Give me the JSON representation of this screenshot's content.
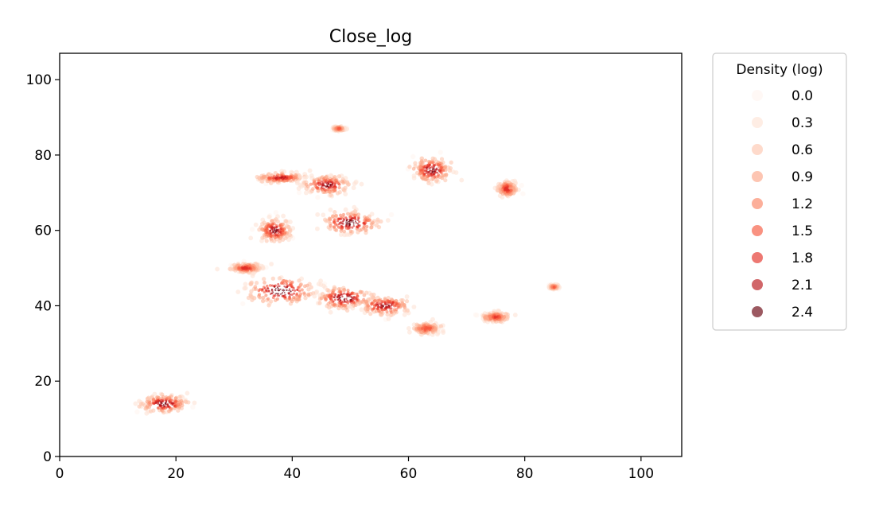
{
  "chart_data": {
    "type": "scatter",
    "title": "Close_log",
    "xlabel": "",
    "ylabel": "",
    "xlim": [
      0,
      107
    ],
    "ylim": [
      0,
      107
    ],
    "xticks": [
      0,
      20,
      40,
      60,
      80,
      100
    ],
    "yticks": [
      0,
      20,
      40,
      60,
      80,
      100
    ],
    "grid": false,
    "colormap": "Reds",
    "legend": {
      "title": "Density (log)",
      "placement": "outside-right",
      "entries": [
        {
          "label": "0.0",
          "color": "#fff5f0"
        },
        {
          "label": "0.3",
          "color": "#fee3d6"
        },
        {
          "label": "0.6",
          "color": "#fdc6af"
        },
        {
          "label": "0.9",
          "color": "#fca689"
        },
        {
          "label": "1.2",
          "color": "#fb8464"
        },
        {
          "label": "1.5",
          "color": "#f6583e"
        },
        {
          "label": "1.8",
          "color": "#e32f27"
        },
        {
          "label": "2.1",
          "color": "#b91419"
        },
        {
          "label": "2.4",
          "color": "#67000d"
        }
      ]
    },
    "clusters": [
      {
        "x": 18,
        "y": 14,
        "spread_x": 1.6,
        "spread_y": 0.9,
        "density": 2.2
      },
      {
        "x": 32,
        "y": 50,
        "spread_x": 1.0,
        "spread_y": 0.5,
        "density": 1.6
      },
      {
        "x": 37,
        "y": 60,
        "spread_x": 1.1,
        "spread_y": 1.2,
        "density": 2.1
      },
      {
        "x": 38,
        "y": 74,
        "spread_x": 1.6,
        "spread_y": 0.5,
        "density": 1.8
      },
      {
        "x": 38,
        "y": 44,
        "spread_x": 2.3,
        "spread_y": 1.4,
        "density": 2.4
      },
      {
        "x": 46,
        "y": 72,
        "spread_x": 1.6,
        "spread_y": 1.0,
        "density": 2.1
      },
      {
        "x": 48,
        "y": 87,
        "spread_x": 0.4,
        "spread_y": 0.2,
        "density": 1.2
      },
      {
        "x": 50,
        "y": 62,
        "spread_x": 2.0,
        "spread_y": 1.2,
        "density": 2.3
      },
      {
        "x": 49,
        "y": 42,
        "spread_x": 2.0,
        "spread_y": 1.2,
        "density": 2.2
      },
      {
        "x": 56,
        "y": 40,
        "spread_x": 1.8,
        "spread_y": 1.0,
        "density": 2.0
      },
      {
        "x": 64,
        "y": 76,
        "spread_x": 1.4,
        "spread_y": 1.3,
        "density": 2.1
      },
      {
        "x": 63,
        "y": 34,
        "spread_x": 1.0,
        "spread_y": 0.6,
        "density": 1.3
      },
      {
        "x": 75,
        "y": 37,
        "spread_x": 1.0,
        "spread_y": 0.5,
        "density": 1.4
      },
      {
        "x": 77,
        "y": 71,
        "spread_x": 0.7,
        "spread_y": 0.8,
        "density": 1.6
      },
      {
        "x": 85,
        "y": 45,
        "spread_x": 0.3,
        "spread_y": 0.2,
        "density": 1.1
      }
    ]
  }
}
